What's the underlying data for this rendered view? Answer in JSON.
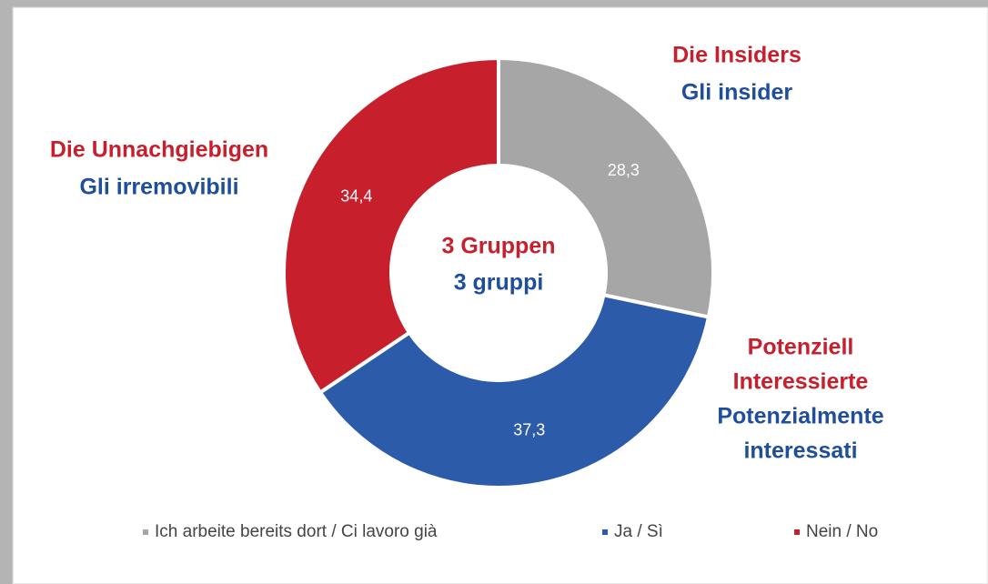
{
  "chart_data": {
    "type": "pie",
    "categories": [
      "Ich arbeite bereits dort / Ci lavoro già",
      "Ja / Sì",
      "Nein / No"
    ],
    "values": [
      28.3,
      37.3,
      34.4
    ],
    "value_labels": [
      "28,3",
      "37,3",
      "34,4"
    ],
    "colors": [
      "#a6a6a6",
      "#2b5ba9",
      "#c81f2d"
    ],
    "center_label": [
      "3 Gruppen",
      "3 gruppi"
    ],
    "annotations": [
      {
        "de": [
          "Die Insiders"
        ],
        "it": [
          "Gli insider"
        ]
      },
      {
        "de": [
          "Potenziell",
          "Interessierte"
        ],
        "it": [
          "Potenzialmente",
          "interessati"
        ]
      },
      {
        "de": [
          "Die Unnachgiebigen"
        ],
        "it": [
          "Gli irremovibili"
        ]
      }
    ],
    "legend": "bottom"
  }
}
